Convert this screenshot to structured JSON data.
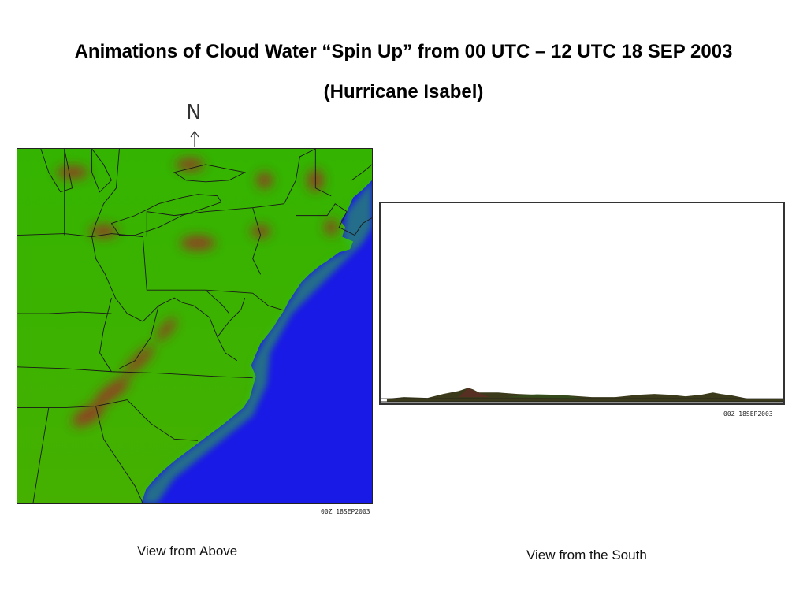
{
  "title": {
    "line1": "Animations of Cloud Water “Spin Up” from 00 UTC – 12 UTC 18 SEP 2003",
    "line2": "(Hurricane Isabel)"
  },
  "north_marker": {
    "letter": "N",
    "icon": "north-arrow-icon"
  },
  "panels": {
    "above": {
      "timestamp": "00Z 18SEP2003",
      "caption": "View from Above",
      "colors": {
        "land": "#3fb000",
        "ocean": "#1a1ae6",
        "cloud": "#a02a2a",
        "borders": "#1a1a1a"
      }
    },
    "south": {
      "timestamp": "00Z 18SEP2003",
      "caption": "View from the South",
      "colors": {
        "terrain": "#3b3a1a",
        "background": "#ffffff"
      }
    }
  }
}
